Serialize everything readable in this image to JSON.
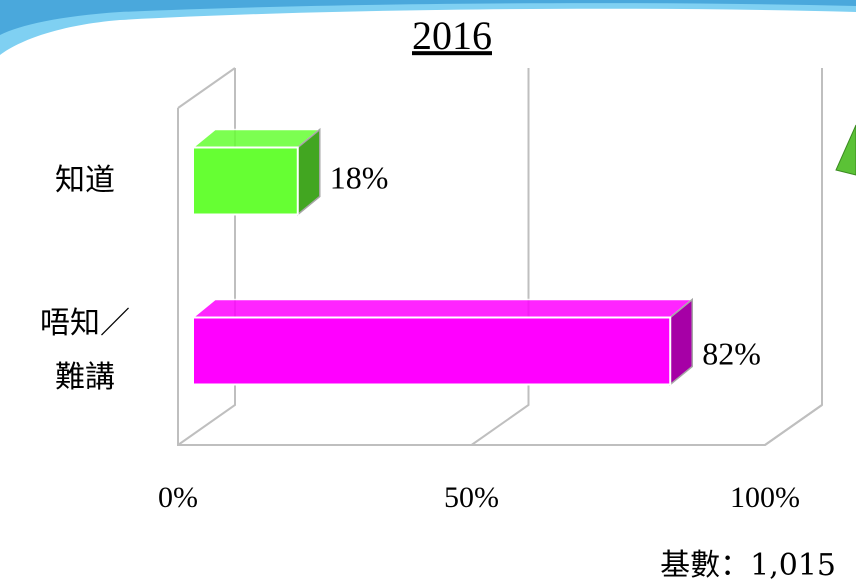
{
  "chart_data": {
    "type": "bar3d",
    "orientation": "horizontal",
    "title": "2016",
    "categories": [
      "知道",
      "唔知／難講"
    ],
    "values": [
      18,
      82
    ],
    "value_labels": [
      "18%",
      "82%"
    ],
    "colors": [
      "#66ff33",
      "#ff00ff"
    ],
    "xlim": [
      0,
      100
    ],
    "xticks": [
      {
        "value": 0,
        "label": "0%"
      },
      {
        "value": 50,
        "label": "50%"
      },
      {
        "value": 100,
        "label": "100%"
      }
    ],
    "grid": true,
    "footnote": "基數：1,015"
  }
}
